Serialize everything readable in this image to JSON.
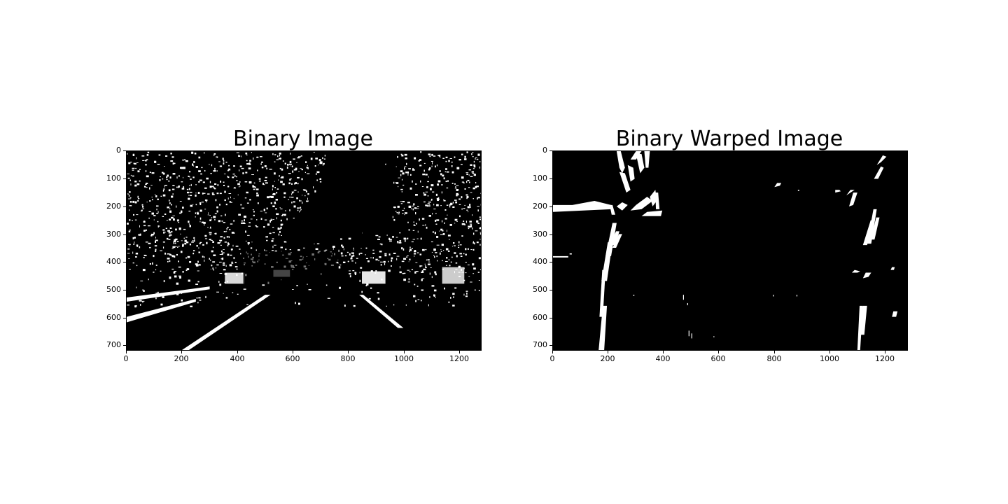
{
  "figure": {
    "background": "#ffffff",
    "panels": [
      {
        "title": "Binary Image",
        "x_ticks": [
          "0",
          "200",
          "400",
          "600",
          "800",
          "1000",
          "1200"
        ],
        "y_ticks": [
          "0",
          "100",
          "200",
          "300",
          "400",
          "500",
          "600",
          "700"
        ],
        "image": {
          "kind": "binary-threshold-road-scene",
          "foreground_color": "#ffffff",
          "background_color": "#000000",
          "content": "thresholded dashcam frame: dense white tree noise at top, lane lines converging at bottom"
        }
      },
      {
        "title": "Binary Warped Image",
        "x_ticks": [
          "0",
          "200",
          "400",
          "600",
          "800",
          "1000",
          "1200"
        ],
        "y_ticks": [
          "0",
          "100",
          "200",
          "300",
          "400",
          "500",
          "600",
          "700"
        ],
        "image": {
          "kind": "binary-birds-eye-lane",
          "foreground_color": "#ffffff",
          "background_color": "#000000",
          "content": "perspective-warped binary: left lane line near x≈180-280, right lane fragments near x≈1100-1200"
        }
      }
    ]
  }
}
